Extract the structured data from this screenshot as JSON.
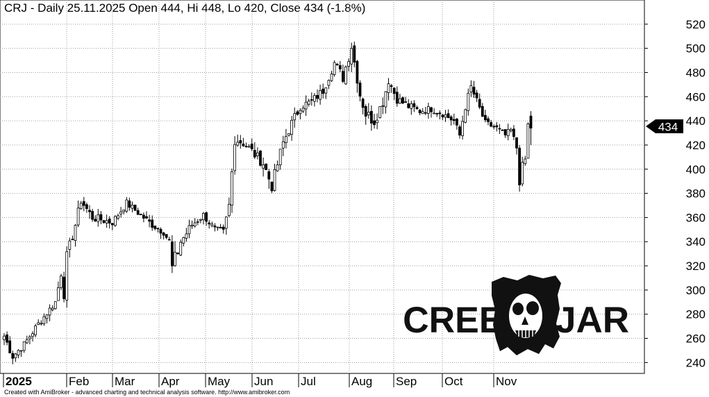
{
  "header": {
    "title": "CRJ - Daily 25.11.2025 Open 444, Hi 448, Lo 420, Close 434 (-1.8%)"
  },
  "footer": {
    "credit": "Created with AmiBroker - advanced charting and technical analysis software. http://www.amibroker.com"
  },
  "logo": {
    "text_left": "CREEPY",
    "text_right": "JAR"
  },
  "colors": {
    "background": "#ffffff",
    "candles": "#000000",
    "grid": "#9a9a9a",
    "price_badge": "#000000",
    "price_badge_text": "#ffffff"
  },
  "chart_data": {
    "type": "candlestick",
    "ticker": "CRJ",
    "period": "Daily",
    "last": {
      "date": "25.11.2025",
      "open": 444,
      "high": 448,
      "low": 420,
      "close": 434,
      "change_pct": -1.8
    },
    "price_label": "434",
    "y_axis": {
      "ticks": [
        240,
        260,
        280,
        300,
        320,
        340,
        360,
        380,
        400,
        420,
        440,
        460,
        480,
        500,
        520
      ],
      "range": [
        231,
        540
      ],
      "position": "right"
    },
    "x_axis": {
      "labels": [
        "2025",
        "Feb",
        "Mar",
        "Apr",
        "May",
        "Jun",
        "Jul",
        "Aug",
        "Sep",
        "Oct",
        "Nov"
      ]
    },
    "grid": true,
    "anchors": [
      {
        "m": 0,
        "c": 262,
        "v": 12
      },
      {
        "m": 3,
        "c": 245,
        "v": 10
      },
      {
        "m": 7,
        "c": 255,
        "v": 10
      },
      {
        "m": 12,
        "c": 272,
        "v": 10
      },
      {
        "m": 18,
        "c": 290,
        "v": 12
      },
      {
        "m": 20,
        "c": 314,
        "v": 12
      },
      {
        "m": 21,
        "c": 296,
        "v": 12
      },
      {
        "m": 22,
        "c": 328,
        "v": 14
      },
      {
        "m": 25,
        "c": 354,
        "v": 14
      },
      {
        "m": 27,
        "c": 374,
        "v": 12
      },
      {
        "m": 31,
        "c": 360,
        "v": 12
      },
      {
        "m": 38,
        "c": 356,
        "v": 10
      },
      {
        "m": 43,
        "c": 372,
        "v": 10
      },
      {
        "m": 48,
        "c": 362,
        "v": 10
      },
      {
        "m": 52,
        "c": 354,
        "v": 10
      },
      {
        "m": 56,
        "c": 348,
        "v": 10
      },
      {
        "m": 58,
        "c": 340,
        "v": 14
      },
      {
        "m": 59,
        "c": 318,
        "v": 22
      },
      {
        "m": 62,
        "c": 340,
        "v": 14
      },
      {
        "m": 66,
        "c": 354,
        "v": 10
      },
      {
        "m": 70,
        "c": 362,
        "v": 10
      },
      {
        "m": 74,
        "c": 350,
        "v": 10
      },
      {
        "m": 77,
        "c": 348,
        "v": 10
      },
      {
        "m": 79,
        "c": 370,
        "v": 12
      },
      {
        "m": 81,
        "c": 425,
        "v": 16
      },
      {
        "m": 84,
        "c": 422,
        "v": 16
      },
      {
        "m": 88,
        "c": 412,
        "v": 14
      },
      {
        "m": 91,
        "c": 405,
        "v": 16
      },
      {
        "m": 94,
        "c": 386,
        "v": 16
      },
      {
        "m": 98,
        "c": 422,
        "v": 14
      },
      {
        "m": 101,
        "c": 438,
        "v": 14
      },
      {
        "m": 104,
        "c": 452,
        "v": 12
      },
      {
        "m": 108,
        "c": 456,
        "v": 12
      },
      {
        "m": 112,
        "c": 465,
        "v": 12
      },
      {
        "m": 116,
        "c": 488,
        "v": 14
      },
      {
        "m": 119,
        "c": 476,
        "v": 16
      },
      {
        "m": 122,
        "c": 502,
        "v": 16
      },
      {
        "m": 125,
        "c": 462,
        "v": 18
      },
      {
        "m": 127,
        "c": 446,
        "v": 18
      },
      {
        "m": 130,
        "c": 440,
        "v": 16
      },
      {
        "m": 133,
        "c": 456,
        "v": 14
      },
      {
        "m": 135,
        "c": 474,
        "v": 14
      },
      {
        "m": 138,
        "c": 458,
        "v": 12
      },
      {
        "m": 142,
        "c": 452,
        "v": 12
      },
      {
        "m": 146,
        "c": 448,
        "v": 10
      },
      {
        "m": 150,
        "c": 450,
        "v": 10
      },
      {
        "m": 154,
        "c": 446,
        "v": 10
      },
      {
        "m": 158,
        "c": 440,
        "v": 10
      },
      {
        "m": 160,
        "c": 428,
        "v": 10
      },
      {
        "m": 162,
        "c": 452,
        "v": 12
      },
      {
        "m": 164,
        "c": 468,
        "v": 12
      },
      {
        "m": 166,
        "c": 456,
        "v": 12
      },
      {
        "m": 169,
        "c": 438,
        "v": 10
      },
      {
        "m": 173,
        "c": 434,
        "v": 8
      },
      {
        "m": 176,
        "c": 428,
        "v": 10
      },
      {
        "m": 178,
        "c": 432,
        "v": 10
      },
      {
        "m": 180,
        "c": 418,
        "v": 14
      },
      {
        "m": 181,
        "c": 392,
        "v": 20
      },
      {
        "m": 183,
        "c": 408,
        "v": 14
      },
      {
        "m": 184,
        "c": 436,
        "v": 16
      },
      {
        "m": 185,
        "c": 434,
        "v": 14
      }
    ]
  }
}
